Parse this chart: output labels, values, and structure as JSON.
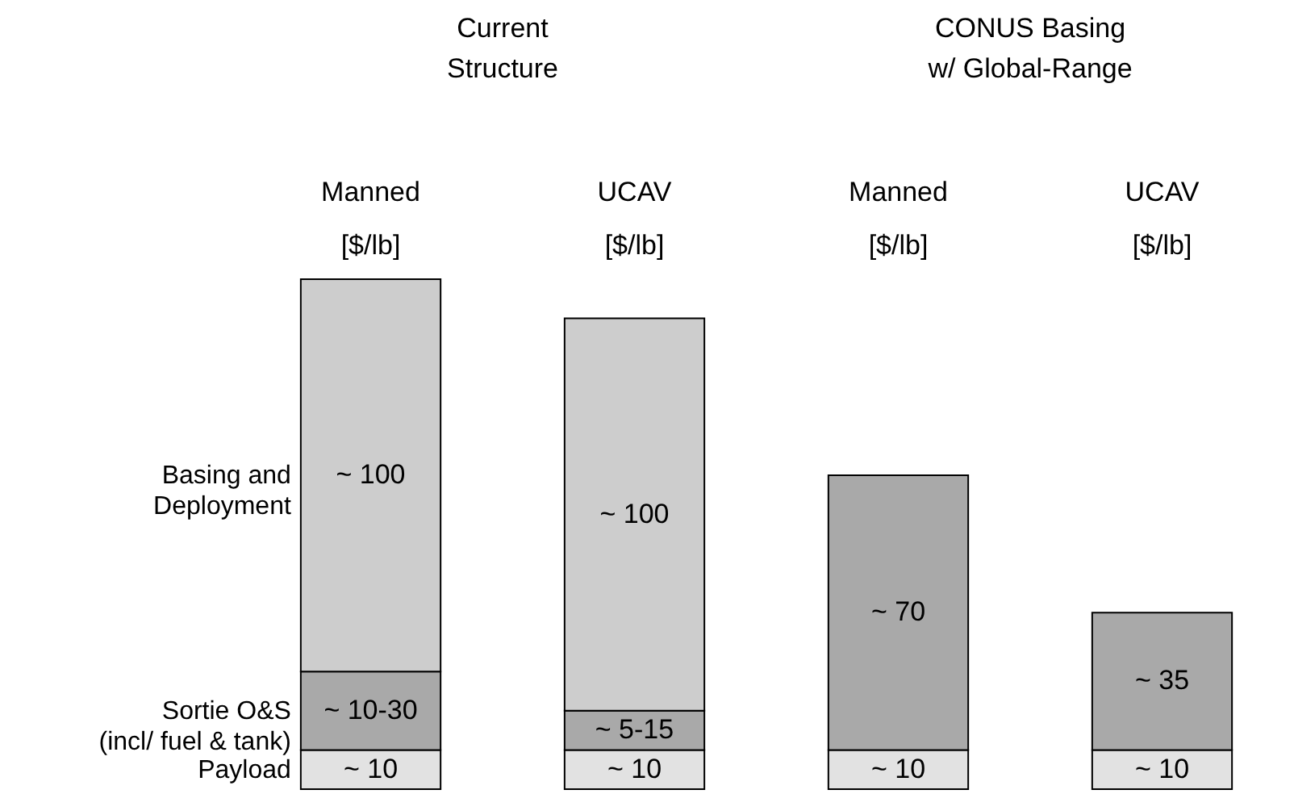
{
  "chart_data": {
    "type": "bar",
    "stacked": true,
    "categories": [
      "Manned\n[$/lb]",
      "UCAV\n[$/lb]",
      "Manned\n[$/lb]",
      "UCAV\n[$/lb]"
    ],
    "annotations": [
      "Current\nStructure",
      "CONUS Basing\nw/ Global-Range"
    ],
    "series": [
      {
        "name": "Payload",
        "color": "#e2e2e2",
        "values": [
          10,
          10,
          10,
          10
        ],
        "value_labels": [
          "~ 10",
          "~ 10",
          "~ 10",
          "~ 10"
        ]
      },
      {
        "name": "Sortie O&S\n(incl/ fuel & tank)",
        "color": "#a9a9a9",
        "values": [
          20,
          10,
          70,
          35
        ],
        "value_labels": [
          "~ 10-30",
          "~ 5-15",
          "~ 70",
          "~ 35"
        ]
      },
      {
        "name": "Basing and\nDeployment",
        "color": "#cdcdcd",
        "values": [
          100,
          100,
          null,
          null
        ],
        "value_labels": [
          "~ 100",
          "~ 100",
          null,
          null
        ]
      }
    ]
  }
}
